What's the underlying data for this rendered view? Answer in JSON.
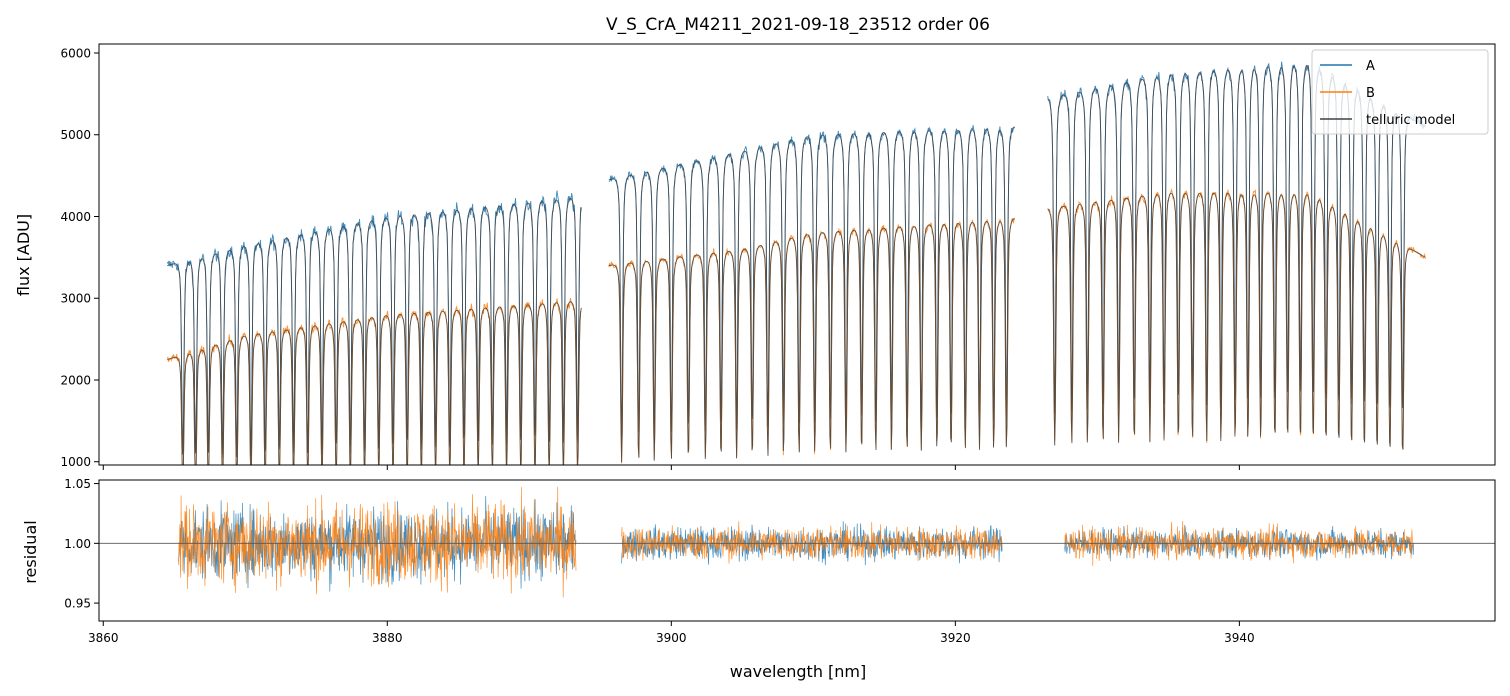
{
  "chart_data": [
    {
      "type": "line",
      "panel": "top",
      "title": "V_S_CrA_M4211_2021-09-18_23512  order 06",
      "xlabel": "",
      "ylabel": "flux [ADU]",
      "xlim": [
        3859.7,
        3958.0
      ],
      "ylim": [
        960,
        6110
      ],
      "x_ticks": [
        3860,
        3880,
        3900,
        3920,
        3940
      ],
      "y_ticks": [
        1000,
        2000,
        3000,
        4000,
        5000,
        6000
      ],
      "y_tick_labels": [
        "1000",
        "2000",
        "3000",
        "4000",
        "5000",
        "6000"
      ],
      "legend_position": "top-right",
      "chips": [
        {
          "x_start": 3864.3,
          "x_end": 3894.6
        },
        {
          "x_start": 3895.5,
          "x_end": 3924.3
        },
        {
          "x_start": 3926.3,
          "x_end": 3953.3
        }
      ],
      "series": [
        {
          "name": "A",
          "color": "#1f77b4",
          "continuum_segments": [
            {
              "x": [
                3864.5,
                3870,
                3880,
                3893.7
              ],
              "y": [
                3400,
                3650,
                4000,
                4250
              ]
            },
            {
              "x": [
                3895.6,
                3905,
                3910,
                3924.2
              ],
              "y": [
                4450,
                4800,
                5000,
                5100
              ]
            },
            {
              "x": [
                3926.5,
                3935,
                3945,
                3953.1
              ],
              "y": [
                5450,
                5750,
                5900,
                5100
              ]
            }
          ]
        },
        {
          "name": "B",
          "color": "#ff7f0e",
          "continuum_segments": [
            {
              "x": [
                3864.5,
                3870,
                3880,
                3893.7
              ],
              "y": [
                2250,
                2550,
                2800,
                2980
              ]
            },
            {
              "x": [
                3895.6,
                3905,
                3910,
                3924.2
              ],
              "y": [
                3400,
                3600,
                3800,
                3980
              ]
            },
            {
              "x": [
                3926.5,
                3935,
                3945,
                3953.1
              ],
              "y": [
                4100,
                4300,
                4300,
                3500
              ]
            }
          ]
        },
        {
          "name": "telluric model",
          "color": "#404040",
          "applies_to": [
            "A",
            "B"
          ],
          "absorption_lines_nm": [
            3865.6,
            3866.5,
            3867.4,
            3868.4,
            3869.4,
            3870.4,
            3871.4,
            3872.4,
            3873.4,
            3874.4,
            3875.4,
            3876.4,
            3877.4,
            3878.4,
            3879.4,
            3880.4,
            3881.4,
            3882.4,
            3883.4,
            3884.4,
            3885.4,
            3886.4,
            3887.4,
            3888.4,
            3889.4,
            3890.4,
            3891.4,
            3892.4,
            3893.4,
            3896.5,
            3897.7,
            3898.8,
            3900.0,
            3901.2,
            3902.4,
            3903.5,
            3904.6,
            3905.7,
            3906.8,
            3907.9,
            3909.0,
            3910.1,
            3911.2,
            3912.3,
            3913.4,
            3914.4,
            3915.5,
            3916.6,
            3917.6,
            3918.7,
            3919.7,
            3920.7,
            3921.7,
            3922.7,
            3923.6,
            3927.0,
            3928.2,
            3929.3,
            3930.4,
            3931.5,
            3932.6,
            3933.7,
            3934.7,
            3935.7,
            3936.7,
            3937.7,
            3938.7,
            3939.7,
            3940.6,
            3941.5,
            3942.5,
            3943.4,
            3944.3,
            3945.2,
            3946.1,
            3947.0,
            3947.9,
            3948.8,
            3949.7,
            3950.6,
            3951.5
          ]
        }
      ]
    },
    {
      "type": "line",
      "panel": "bottom",
      "title": "",
      "xlabel": "wavelength [nm]",
      "ylabel": "residual",
      "xlim": [
        3859.7,
        3958.0
      ],
      "ylim": [
        0.935,
        1.053
      ],
      "x_ticks": [
        3860,
        3880,
        3900,
        3920,
        3940
      ],
      "x_tick_labels": [
        "3860",
        "3880",
        "3900",
        "3920",
        "3940"
      ],
      "y_ticks": [
        0.95,
        1.0,
        1.05
      ],
      "y_tick_labels": [
        "0.95",
        "1.00",
        "1.05"
      ],
      "reference_line": 1.0,
      "series": [
        {
          "name": "A",
          "color": "#1f77b4",
          "segments": [
            {
              "x_start": 3865.3,
              "x_end": 3893.3,
              "scatter": 0.028
            },
            {
              "x_start": 3896.5,
              "x_end": 3923.3,
              "scatter": 0.013
            },
            {
              "x_start": 3927.7,
              "x_end": 3952.3,
              "scatter": 0.011
            }
          ]
        },
        {
          "name": "B",
          "color": "#ff7f0e",
          "segments": [
            {
              "x_start": 3865.3,
              "x_end": 3893.3,
              "scatter": 0.032
            },
            {
              "x_start": 3896.5,
              "x_end": 3923.3,
              "scatter": 0.013
            },
            {
              "x_start": 3927.7,
              "x_end": 3952.3,
              "scatter": 0.012
            }
          ]
        }
      ]
    }
  ]
}
